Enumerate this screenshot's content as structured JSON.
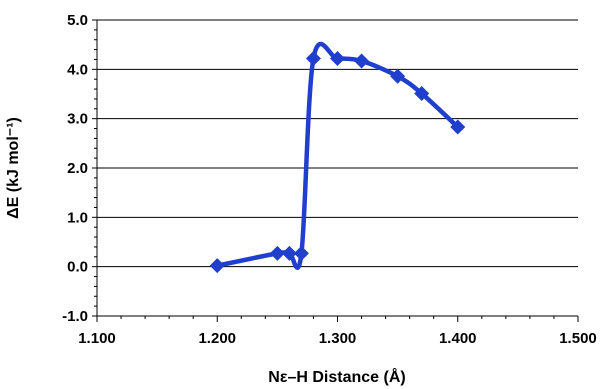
{
  "chart_data": {
    "type": "line",
    "title": "",
    "xlabel": "Nε–H Distance (Å)",
    "ylabel": "ΔE (kJ mol⁻¹)",
    "xlim": [
      1.1,
      1.5
    ],
    "ylim": [
      -1.0,
      5.0
    ],
    "x_ticks": [
      "1.100",
      "1.200",
      "1.300",
      "1.400",
      "1.500"
    ],
    "y_ticks": [
      "-1.0",
      "0.0",
      "1.0",
      "2.0",
      "3.0",
      "4.0",
      "5.0"
    ],
    "grid": "horizontal",
    "legend": "none",
    "series": [
      {
        "color": "#1f3fcc",
        "marker": "diamond",
        "smooth": true,
        "points": [
          {
            "x": 1.2,
            "y": 0.02
          },
          {
            "x": 1.25,
            "y": 0.27
          },
          {
            "x": 1.26,
            "y": 0.27
          },
          {
            "x": 1.27,
            "y": 0.27
          },
          {
            "x": 1.28,
            "y": 4.22
          },
          {
            "x": 1.3,
            "y": 4.22
          },
          {
            "x": 1.32,
            "y": 4.17
          },
          {
            "x": 1.35,
            "y": 3.86
          },
          {
            "x": 1.37,
            "y": 3.51
          },
          {
            "x": 1.4,
            "y": 2.83
          }
        ]
      }
    ]
  }
}
